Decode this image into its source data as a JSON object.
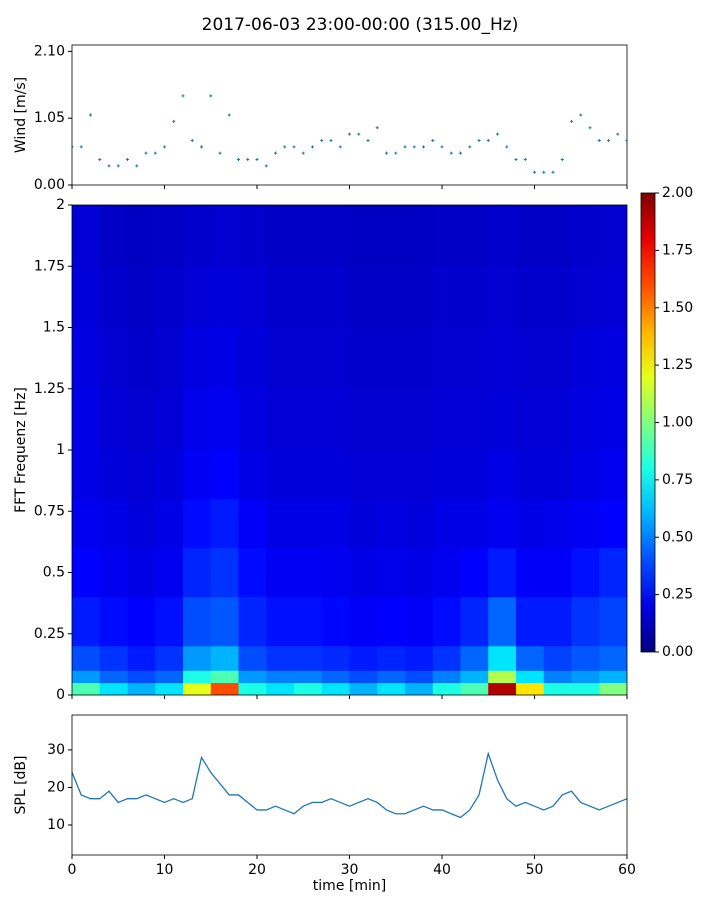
{
  "title": "2017-06-03 23:00-00:00 (315.00_Hz)",
  "chart_data": [
    {
      "type": "scatter",
      "ylabel": "Wind [m/s]",
      "color": "#1f77b4",
      "xlim": [
        0,
        60
      ],
      "xticks": [
        0,
        10,
        20,
        30,
        40,
        50,
        60
      ],
      "ylim": [
        0,
        2.2
      ],
      "yticks": [
        {
          "value": 0,
          "label": "0.00"
        },
        {
          "value": 1.05,
          "label": "1.05"
        },
        {
          "value": 2.1,
          "label": "2.10"
        }
      ],
      "x": [
        0,
        1,
        2,
        3,
        4,
        5,
        6,
        7,
        8,
        9,
        10,
        11,
        12,
        13,
        14,
        15,
        16,
        17,
        18,
        19,
        20,
        21,
        22,
        23,
        24,
        25,
        26,
        27,
        28,
        29,
        30,
        31,
        32,
        33,
        34,
        35,
        36,
        37,
        38,
        39,
        40,
        41,
        42,
        43,
        44,
        45,
        46,
        47,
        48,
        49,
        50,
        51,
        52,
        53,
        54,
        55,
        56,
        57,
        58,
        59,
        60
      ],
      "values": [
        0.6,
        0.6,
        1.1,
        0.4,
        0.3,
        0.3,
        0.4,
        0.3,
        0.5,
        0.5,
        0.6,
        1.0,
        1.4,
        0.7,
        0.6,
        1.4,
        0.5,
        1.1,
        0.4,
        0.4,
        0.4,
        0.3,
        0.5,
        0.6,
        0.6,
        0.5,
        0.6,
        0.7,
        0.7,
        0.6,
        0.8,
        0.8,
        0.7,
        0.9,
        0.5,
        0.5,
        0.6,
        0.6,
        0.6,
        0.7,
        0.6,
        0.5,
        0.5,
        0.6,
        0.7,
        0.7,
        0.8,
        0.6,
        0.4,
        0.4,
        0.2,
        0.2,
        0.2,
        0.4,
        1.0,
        1.1,
        0.9,
        0.7,
        0.7,
        0.8,
        0.7
      ]
    },
    {
      "type": "heatmap",
      "ylabel": "FFT Frequenz [Hz]",
      "colormap": "jet",
      "xlim": [
        0,
        60
      ],
      "xticks": [
        0,
        10,
        20,
        30,
        40,
        50,
        60
      ],
      "ylim": [
        0,
        2
      ],
      "yticks": [
        0,
        0.25,
        0.5,
        0.75,
        1,
        1.25,
        1.5,
        1.75,
        2
      ],
      "clim": [
        0,
        2
      ],
      "cticks": [
        {
          "value": 0,
          "label": "0.00"
        },
        {
          "value": 0.25,
          "label": "0.25"
        },
        {
          "value": 0.5,
          "label": "0.50"
        },
        {
          "value": 0.75,
          "label": "0.75"
        },
        {
          "value": 1,
          "label": "1.00"
        },
        {
          "value": 1.25,
          "label": "1.25"
        },
        {
          "value": 1.5,
          "label": "1.50"
        },
        {
          "value": 1.75,
          "label": "1.75"
        },
        {
          "value": 2,
          "label": "2.00"
        }
      ],
      "xbins": [
        0,
        3,
        6,
        9,
        12,
        15,
        18,
        21,
        24,
        27,
        30,
        33,
        36,
        39,
        42,
        45,
        48,
        51,
        54,
        57,
        60
      ],
      "ybins": [
        0,
        0.05,
        0.1,
        0.2,
        0.4,
        0.6,
        0.8,
        1.0,
        1.25,
        1.5,
        1.75,
        2
      ],
      "values": [
        [
          0.9,
          0.7,
          0.6,
          0.7,
          1.2,
          1.6,
          0.8,
          0.7,
          0.8,
          0.7,
          0.6,
          0.7,
          0.6,
          0.8,
          0.9,
          1.9,
          1.3,
          0.8,
          0.8,
          1.0
        ],
        [
          0.55,
          0.45,
          0.4,
          0.45,
          0.8,
          0.9,
          0.55,
          0.5,
          0.5,
          0.45,
          0.4,
          0.45,
          0.4,
          0.5,
          0.6,
          1.1,
          0.7,
          0.5,
          0.55,
          0.6
        ],
        [
          0.4,
          0.35,
          0.3,
          0.35,
          0.55,
          0.6,
          0.4,
          0.35,
          0.35,
          0.33,
          0.3,
          0.32,
          0.3,
          0.35,
          0.45,
          0.7,
          0.45,
          0.38,
          0.42,
          0.45
        ],
        [
          0.3,
          0.27,
          0.25,
          0.28,
          0.4,
          0.42,
          0.32,
          0.28,
          0.28,
          0.26,
          0.24,
          0.25,
          0.24,
          0.27,
          0.32,
          0.45,
          0.3,
          0.3,
          0.35,
          0.38
        ],
        [
          0.25,
          0.22,
          0.2,
          0.22,
          0.32,
          0.35,
          0.27,
          0.23,
          0.23,
          0.22,
          0.2,
          0.21,
          0.2,
          0.22,
          0.25,
          0.3,
          0.24,
          0.24,
          0.28,
          0.32
        ],
        [
          0.22,
          0.2,
          0.18,
          0.2,
          0.27,
          0.3,
          0.24,
          0.2,
          0.2,
          0.2,
          0.18,
          0.19,
          0.18,
          0.2,
          0.2,
          0.22,
          0.2,
          0.21,
          0.23,
          0.25
        ],
        [
          0.2,
          0.18,
          0.17,
          0.18,
          0.23,
          0.25,
          0.2,
          0.18,
          0.18,
          0.18,
          0.17,
          0.17,
          0.17,
          0.18,
          0.18,
          0.2,
          0.18,
          0.18,
          0.2,
          0.22
        ],
        [
          0.2,
          0.17,
          0.16,
          0.17,
          0.21,
          0.22,
          0.19,
          0.17,
          0.17,
          0.17,
          0.16,
          0.16,
          0.16,
          0.17,
          0.17,
          0.18,
          0.17,
          0.17,
          0.19,
          0.2
        ],
        [
          0.19,
          0.16,
          0.15,
          0.16,
          0.19,
          0.2,
          0.18,
          0.16,
          0.16,
          0.16,
          0.15,
          0.15,
          0.15,
          0.16,
          0.16,
          0.17,
          0.16,
          0.16,
          0.18,
          0.19
        ],
        [
          0.18,
          0.15,
          0.14,
          0.15,
          0.17,
          0.18,
          0.17,
          0.15,
          0.15,
          0.15,
          0.14,
          0.14,
          0.14,
          0.15,
          0.15,
          0.16,
          0.15,
          0.15,
          0.16,
          0.17
        ],
        [
          0.17,
          0.14,
          0.13,
          0.14,
          0.15,
          0.16,
          0.15,
          0.14,
          0.14,
          0.14,
          0.13,
          0.13,
          0.13,
          0.14,
          0.14,
          0.15,
          0.14,
          0.14,
          0.15,
          0.16
        ]
      ]
    },
    {
      "type": "line",
      "ylabel": "SPL [dB]",
      "xlabel": "time [min]",
      "color": "#1f77b4",
      "xlim": [
        0,
        60
      ],
      "xticks": [
        0,
        10,
        20,
        30,
        40,
        50,
        60
      ],
      "ylim": [
        2,
        39.3
      ],
      "yticks": [
        10,
        20,
        30
      ],
      "x": [
        0,
        1,
        2,
        3,
        4,
        5,
        6,
        7,
        8,
        9,
        10,
        11,
        12,
        13,
        14,
        15,
        16,
        17,
        18,
        19,
        20,
        21,
        22,
        23,
        24,
        25,
        26,
        27,
        28,
        29,
        30,
        31,
        32,
        33,
        34,
        35,
        36,
        37,
        38,
        39,
        40,
        41,
        42,
        43,
        44,
        45,
        46,
        47,
        48,
        49,
        50,
        51,
        52,
        53,
        54,
        55,
        56,
        57,
        58,
        59,
        60
      ],
      "values": [
        24,
        18,
        17,
        17,
        19,
        16,
        17,
        17,
        18,
        17,
        16,
        17,
        16,
        17,
        28,
        24,
        21,
        18,
        18,
        16,
        14,
        14,
        15,
        14,
        13,
        15,
        16,
        16,
        17,
        16,
        15,
        16,
        17,
        16,
        14,
        13,
        13,
        14,
        15,
        14,
        14,
        13,
        12,
        14,
        18,
        29,
        22,
        17,
        15,
        16,
        15,
        14,
        15,
        18,
        19,
        16,
        15,
        14,
        15,
        16,
        17
      ]
    }
  ]
}
